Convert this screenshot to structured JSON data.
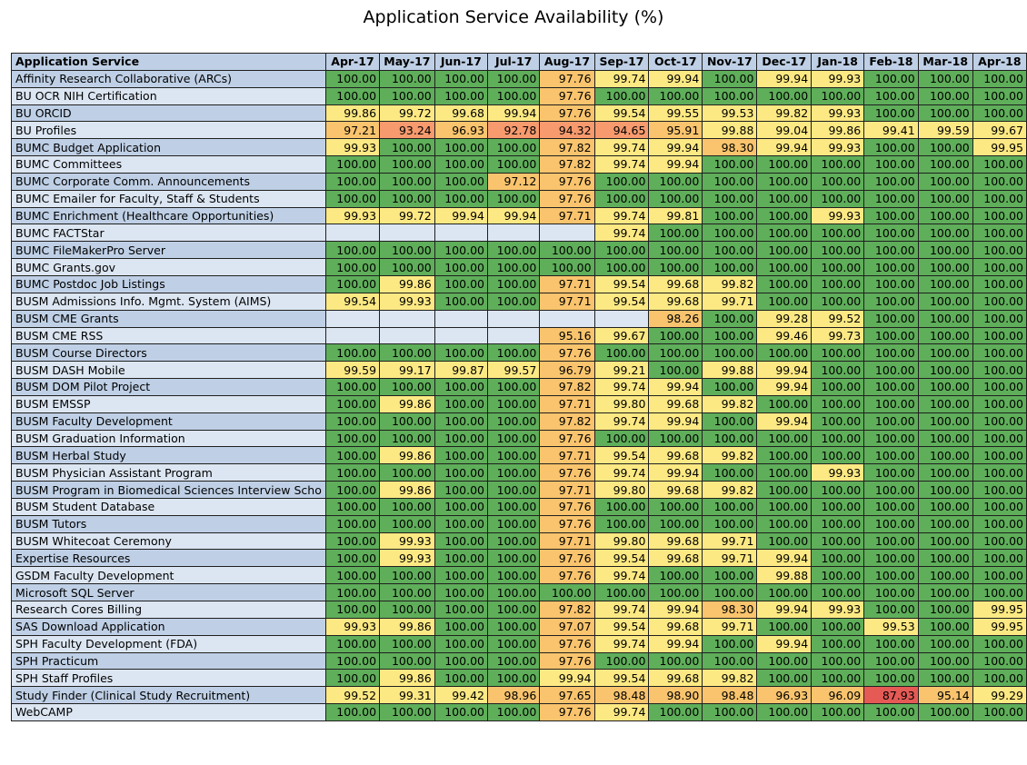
{
  "title": "Application Service Availability (%)",
  "colors": {
    "green": "#5fae5a",
    "yellow": "#fde983",
    "orange": "#f9c46d",
    "salmon": "#f79a6e",
    "red": "#e55a55",
    "row_odd": "#bfd0e6",
    "row_even": "#dce6f2"
  },
  "chart_data": {
    "type": "heatmap",
    "title": "Application Service Availability (%)",
    "row_header": "Application Service",
    "columns": [
      "Apr-17",
      "May-17",
      "Jun-17",
      "Jul-17",
      "Aug-17",
      "Sep-17",
      "Oct-17",
      "Nov-17",
      "Dec-17",
      "Jan-18",
      "Feb-18",
      "Mar-18",
      "Apr-18"
    ],
    "rows": [
      {
        "name": "Affinity Research Collaborative (ARCs)",
        "values": [
          100.0,
          100.0,
          100.0,
          100.0,
          97.76,
          99.74,
          99.94,
          100.0,
          99.94,
          99.93,
          100.0,
          100.0,
          100.0
        ]
      },
      {
        "name": "BU OCR NIH Certification",
        "values": [
          100.0,
          100.0,
          100.0,
          100.0,
          97.76,
          100.0,
          100.0,
          100.0,
          100.0,
          100.0,
          100.0,
          100.0,
          100.0
        ]
      },
      {
        "name": "BU ORCID",
        "values": [
          99.86,
          99.72,
          99.68,
          99.94,
          97.76,
          99.54,
          99.55,
          99.53,
          99.82,
          99.93,
          100.0,
          100.0,
          100.0
        ]
      },
      {
        "name": "BU Profiles",
        "values": [
          97.21,
          93.24,
          96.93,
          92.78,
          94.32,
          94.65,
          95.91,
          99.88,
          99.04,
          99.86,
          99.41,
          99.59,
          99.67
        ]
      },
      {
        "name": "BUMC Budget Application",
        "values": [
          99.93,
          100.0,
          100.0,
          100.0,
          97.82,
          99.74,
          99.94,
          98.3,
          99.94,
          99.93,
          100.0,
          100.0,
          99.95
        ]
      },
      {
        "name": "BUMC Committees",
        "values": [
          100.0,
          100.0,
          100.0,
          100.0,
          97.82,
          99.74,
          99.94,
          100.0,
          100.0,
          100.0,
          100.0,
          100.0,
          100.0
        ]
      },
      {
        "name": "BUMC Corporate Comm. Announcements",
        "values": [
          100.0,
          100.0,
          100.0,
          97.12,
          97.76,
          100.0,
          100.0,
          100.0,
          100.0,
          100.0,
          100.0,
          100.0,
          100.0
        ]
      },
      {
        "name": "BUMC Emailer for Faculty, Staff & Students",
        "values": [
          100.0,
          100.0,
          100.0,
          100.0,
          97.76,
          100.0,
          100.0,
          100.0,
          100.0,
          100.0,
          100.0,
          100.0,
          100.0
        ]
      },
      {
        "name": "BUMC Enrichment (Healthcare Opportunities)",
        "values": [
          99.93,
          99.72,
          99.94,
          99.94,
          97.71,
          99.74,
          99.81,
          100.0,
          100.0,
          99.93,
          100.0,
          100.0,
          100.0
        ]
      },
      {
        "name": "BUMC FACTStar",
        "values": [
          null,
          null,
          null,
          null,
          null,
          99.74,
          100.0,
          100.0,
          100.0,
          100.0,
          100.0,
          100.0,
          100.0
        ]
      },
      {
        "name": "BUMC FileMakerPro Server",
        "values": [
          100.0,
          100.0,
          100.0,
          100.0,
          100.0,
          100.0,
          100.0,
          100.0,
          100.0,
          100.0,
          100.0,
          100.0,
          100.0
        ]
      },
      {
        "name": "BUMC Grants.gov",
        "values": [
          100.0,
          100.0,
          100.0,
          100.0,
          100.0,
          100.0,
          100.0,
          100.0,
          100.0,
          100.0,
          100.0,
          100.0,
          100.0
        ]
      },
      {
        "name": "BUMC Postdoc Job Listings",
        "values": [
          100.0,
          99.86,
          100.0,
          100.0,
          97.71,
          99.54,
          99.68,
          99.82,
          100.0,
          100.0,
          100.0,
          100.0,
          100.0
        ]
      },
      {
        "name": "BUSM Admissions Info. Mgmt. System (AIMS)",
        "values": [
          99.54,
          99.93,
          100.0,
          100.0,
          97.71,
          99.54,
          99.68,
          99.71,
          100.0,
          100.0,
          100.0,
          100.0,
          100.0
        ]
      },
      {
        "name": "BUSM CME Grants",
        "values": [
          null,
          null,
          null,
          null,
          null,
          null,
          98.26,
          100.0,
          99.28,
          99.52,
          100.0,
          100.0,
          100.0
        ]
      },
      {
        "name": "BUSM CME RSS",
        "values": [
          null,
          null,
          null,
          null,
          95.16,
          99.67,
          100.0,
          100.0,
          99.46,
          99.73,
          100.0,
          100.0,
          100.0
        ]
      },
      {
        "name": "BUSM Course Directors",
        "values": [
          100.0,
          100.0,
          100.0,
          100.0,
          97.76,
          100.0,
          100.0,
          100.0,
          100.0,
          100.0,
          100.0,
          100.0,
          100.0
        ]
      },
      {
        "name": "BUSM DASH Mobile",
        "values": [
          99.59,
          99.17,
          99.87,
          99.57,
          96.79,
          99.21,
          100.0,
          99.88,
          99.94,
          100.0,
          100.0,
          100.0,
          100.0
        ]
      },
      {
        "name": "BUSM DOM Pilot Project",
        "values": [
          100.0,
          100.0,
          100.0,
          100.0,
          97.82,
          99.74,
          99.94,
          100.0,
          99.94,
          100.0,
          100.0,
          100.0,
          100.0
        ]
      },
      {
        "name": "BUSM EMSSP",
        "values": [
          100.0,
          99.86,
          100.0,
          100.0,
          97.71,
          99.8,
          99.68,
          99.82,
          100.0,
          100.0,
          100.0,
          100.0,
          100.0
        ]
      },
      {
        "name": "BUSM Faculty Development",
        "values": [
          100.0,
          100.0,
          100.0,
          100.0,
          97.82,
          99.74,
          99.94,
          100.0,
          99.94,
          100.0,
          100.0,
          100.0,
          100.0
        ]
      },
      {
        "name": "BUSM Graduation Information",
        "values": [
          100.0,
          100.0,
          100.0,
          100.0,
          97.76,
          100.0,
          100.0,
          100.0,
          100.0,
          100.0,
          100.0,
          100.0,
          100.0
        ]
      },
      {
        "name": "BUSM Herbal Study",
        "values": [
          100.0,
          99.86,
          100.0,
          100.0,
          97.71,
          99.54,
          99.68,
          99.82,
          100.0,
          100.0,
          100.0,
          100.0,
          100.0
        ]
      },
      {
        "name": "BUSM Physician Assistant Program",
        "values": [
          100.0,
          100.0,
          100.0,
          100.0,
          97.76,
          99.74,
          99.94,
          100.0,
          100.0,
          99.93,
          100.0,
          100.0,
          100.0
        ]
      },
      {
        "name": "BUSM Program in Biomedical Sciences Interview Scho",
        "values": [
          100.0,
          99.86,
          100.0,
          100.0,
          97.71,
          99.8,
          99.68,
          99.82,
          100.0,
          100.0,
          100.0,
          100.0,
          100.0
        ]
      },
      {
        "name": "BUSM Student Database",
        "values": [
          100.0,
          100.0,
          100.0,
          100.0,
          97.76,
          100.0,
          100.0,
          100.0,
          100.0,
          100.0,
          100.0,
          100.0,
          100.0
        ]
      },
      {
        "name": "BUSM Tutors",
        "values": [
          100.0,
          100.0,
          100.0,
          100.0,
          97.76,
          100.0,
          100.0,
          100.0,
          100.0,
          100.0,
          100.0,
          100.0,
          100.0
        ]
      },
      {
        "name": "BUSM Whitecoat Ceremony",
        "values": [
          100.0,
          99.93,
          100.0,
          100.0,
          97.71,
          99.8,
          99.68,
          99.71,
          100.0,
          100.0,
          100.0,
          100.0,
          100.0
        ]
      },
      {
        "name": "Expertise Resources",
        "values": [
          100.0,
          99.93,
          100.0,
          100.0,
          97.76,
          99.54,
          99.68,
          99.71,
          99.94,
          100.0,
          100.0,
          100.0,
          100.0
        ]
      },
      {
        "name": "GSDM Faculty Development",
        "values": [
          100.0,
          100.0,
          100.0,
          100.0,
          97.76,
          99.74,
          100.0,
          100.0,
          99.88,
          100.0,
          100.0,
          100.0,
          100.0
        ]
      },
      {
        "name": "Microsoft SQL Server",
        "values": [
          100.0,
          100.0,
          100.0,
          100.0,
          100.0,
          100.0,
          100.0,
          100.0,
          100.0,
          100.0,
          100.0,
          100.0,
          100.0
        ]
      },
      {
        "name": "Research Cores Billing",
        "values": [
          100.0,
          100.0,
          100.0,
          100.0,
          97.82,
          99.74,
          99.94,
          98.3,
          99.94,
          99.93,
          100.0,
          100.0,
          99.95
        ]
      },
      {
        "name": "SAS Download Application",
        "values": [
          99.93,
          99.86,
          100.0,
          100.0,
          97.07,
          99.54,
          99.68,
          99.71,
          100.0,
          100.0,
          99.53,
          100.0,
          99.95
        ]
      },
      {
        "name": "SPH Faculty Development (FDA)",
        "values": [
          100.0,
          100.0,
          100.0,
          100.0,
          97.76,
          99.74,
          99.94,
          100.0,
          99.94,
          100.0,
          100.0,
          100.0,
          100.0
        ]
      },
      {
        "name": "SPH Practicum",
        "values": [
          100.0,
          100.0,
          100.0,
          100.0,
          97.76,
          100.0,
          100.0,
          100.0,
          100.0,
          100.0,
          100.0,
          100.0,
          100.0
        ]
      },
      {
        "name": "SPH Staff Profiles",
        "values": [
          100.0,
          99.86,
          100.0,
          100.0,
          99.94,
          99.54,
          99.68,
          99.82,
          100.0,
          100.0,
          100.0,
          100.0,
          100.0
        ]
      },
      {
        "name": "Study Finder (Clinical Study Recruitment)",
        "values": [
          99.52,
          99.31,
          99.42,
          98.96,
          97.65,
          98.48,
          98.9,
          98.48,
          96.93,
          96.09,
          87.93,
          95.14,
          99.29
        ]
      },
      {
        "name": "WebCAMP",
        "values": [
          100.0,
          100.0,
          100.0,
          100.0,
          97.76,
          99.74,
          100.0,
          100.0,
          100.0,
          100.0,
          100.0,
          100.0,
          100.0
        ]
      }
    ]
  }
}
